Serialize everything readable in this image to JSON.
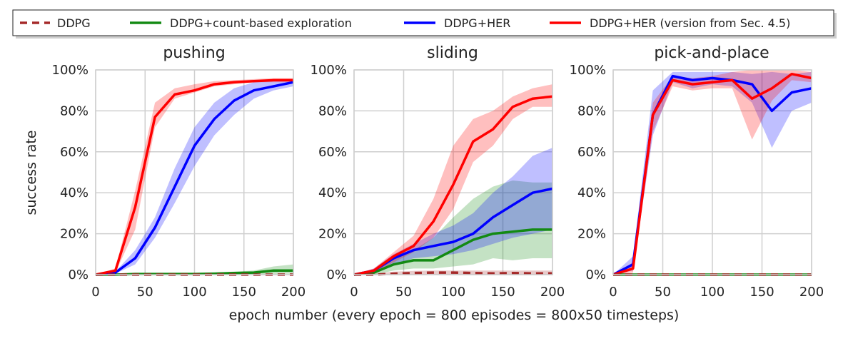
{
  "figure": {
    "ylabel": "success rate",
    "xlabel": "epoch number (every epoch = 800 episodes = 800x50 timesteps)"
  },
  "legend": {
    "placement": "top",
    "items": [
      {
        "label": "DDPG",
        "color": "#a52a2a",
        "style": "dashed"
      },
      {
        "label": "DDPG+count-based exploration",
        "color": "#138a13",
        "style": "solid"
      },
      {
        "label": "DDPG+HER",
        "color": "#0000ff",
        "style": "solid"
      },
      {
        "label": "DDPG+HER (version from Sec. 4.5)",
        "color": "#ff0000",
        "style": "solid"
      }
    ]
  },
  "chart_data": [
    {
      "type": "line",
      "title": "pushing",
      "xlim": [
        0,
        200
      ],
      "ylim": [
        0,
        100
      ],
      "xticks": [
        "0",
        "50",
        "100",
        "150",
        "200"
      ],
      "yticks": [
        "0%",
        "20%",
        "40%",
        "60%",
        "80%",
        "100%"
      ],
      "grid": true,
      "x": [
        0,
        20,
        40,
        60,
        80,
        100,
        120,
        140,
        160,
        180,
        200
      ],
      "series": [
        {
          "name": "DDPG",
          "color": "#a52a2a",
          "values": [
            0,
            0,
            0,
            0,
            0,
            0,
            0,
            0,
            0,
            0,
            0
          ],
          "lower": [
            0,
            0,
            0,
            0,
            0,
            0,
            0,
            0,
            0,
            0,
            0
          ],
          "upper": [
            0,
            0,
            0,
            0,
            0,
            0,
            0,
            0,
            0,
            0,
            0
          ]
        },
        {
          "name": "DDPG+count-based exploration",
          "color": "#138a13",
          "values": [
            0,
            0,
            0.3,
            0.3,
            0.3,
            0.3,
            0.5,
            0.8,
            1,
            2,
            2
          ],
          "lower": [
            0,
            0,
            0,
            0,
            0,
            0,
            0,
            0,
            0,
            0.3,
            0.5
          ],
          "upper": [
            0,
            0,
            0.6,
            0.6,
            0.6,
            0.6,
            1,
            1.5,
            2,
            4,
            5
          ]
        },
        {
          "name": "DDPG+HER",
          "color": "#0000ff",
          "values": [
            0,
            1,
            8,
            23,
            43,
            63,
            76,
            85,
            90,
            92,
            94
          ],
          "lower": [
            0,
            0.5,
            5,
            18,
            35,
            53,
            68,
            78,
            86,
            90,
            92
          ],
          "upper": [
            0,
            1.5,
            12,
            28,
            52,
            72,
            84,
            91,
            94,
            95,
            95
          ]
        },
        {
          "name": "DDPG+HER (version from Sec. 4.5)",
          "color": "#ff0000",
          "values": [
            0,
            2,
            33,
            77,
            88,
            90,
            93,
            94,
            94.5,
            95,
            95
          ],
          "lower": [
            0,
            1,
            22,
            72,
            86,
            89,
            92,
            93,
            94,
            94,
            94
          ],
          "upper": [
            0,
            3,
            41,
            84,
            91,
            93,
            94.5,
            95,
            95.5,
            96,
            96
          ]
        }
      ]
    },
    {
      "type": "line",
      "title": "sliding",
      "xlim": [
        0,
        200
      ],
      "ylim": [
        0,
        100
      ],
      "xticks": [
        "0",
        "50",
        "100",
        "150",
        "200"
      ],
      "yticks": [
        "0%",
        "20%",
        "40%",
        "60%",
        "80%",
        "100%"
      ],
      "grid": true,
      "x": [
        0,
        20,
        40,
        60,
        80,
        100,
        120,
        140,
        160,
        180,
        200
      ],
      "series": [
        {
          "name": "DDPG",
          "color": "#a52a2a",
          "values": [
            0,
            0,
            0.5,
            0.8,
            1,
            1,
            0.8,
            0.6,
            0.8,
            0.6,
            0.6
          ],
          "lower": [
            0,
            0,
            0,
            0,
            0,
            0,
            0,
            0,
            0,
            0,
            0
          ],
          "upper": [
            0,
            0.5,
            1.5,
            1.8,
            2,
            2,
            2,
            2,
            2,
            2,
            2
          ]
        },
        {
          "name": "DDPG+count-based exploration",
          "color": "#138a13",
          "values": [
            0,
            1,
            5,
            7,
            7,
            12,
            17,
            20,
            21,
            22,
            22
          ],
          "lower": [
            0,
            0,
            2,
            3,
            3,
            4,
            5,
            8,
            7,
            8,
            8
          ],
          "upper": [
            0,
            2,
            8,
            12,
            18,
            28,
            37,
            43,
            46,
            45,
            45
          ]
        },
        {
          "name": "DDPG+HER",
          "color": "#0000ff",
          "values": [
            0,
            2,
            8,
            12,
            14,
            16,
            20,
            28,
            34,
            40,
            42
          ],
          "lower": [
            0,
            1,
            5,
            8,
            9,
            10,
            12,
            15,
            18,
            20,
            22
          ],
          "upper": [
            0,
            3,
            10,
            15,
            20,
            24,
            30,
            40,
            48,
            58,
            62
          ]
        },
        {
          "name": "DDPG+HER (version from Sec. 4.5)",
          "color": "#ff0000",
          "values": [
            0,
            2,
            9,
            14,
            26,
            44,
            65,
            71,
            82,
            86,
            87
          ],
          "lower": [
            0,
            1,
            6,
            11,
            18,
            32,
            55,
            63,
            76,
            82,
            82
          ],
          "upper": [
            0,
            3,
            11,
            19,
            37,
            63,
            76,
            80,
            87,
            91,
            93
          ]
        }
      ]
    },
    {
      "type": "line",
      "title": "pick-and-place",
      "xlim": [
        0,
        200
      ],
      "ylim": [
        0,
        100
      ],
      "xticks": [
        "0",
        "50",
        "100",
        "150",
        "200"
      ],
      "yticks": [
        "0%",
        "20%",
        "40%",
        "60%",
        "80%",
        "100%"
      ],
      "grid": true,
      "x": [
        0,
        20,
        40,
        60,
        80,
        100,
        120,
        140,
        160,
        180,
        200
      ],
      "series": [
        {
          "name": "DDPG",
          "color": "#a52a2a",
          "values": [
            0,
            0,
            0,
            0,
            0,
            0,
            0,
            0,
            0,
            0,
            0
          ],
          "lower": [
            0,
            0,
            0,
            0,
            0,
            0,
            0,
            0,
            0,
            0,
            0
          ],
          "upper": [
            0,
            0,
            0,
            0,
            0,
            0,
            0,
            0,
            0,
            0,
            0
          ]
        },
        {
          "name": "DDPG+count-based exploration",
          "color": "#138a13",
          "values": [
            0,
            0,
            0,
            0,
            0,
            0,
            0,
            0,
            0,
            0,
            0
          ],
          "lower": [
            0,
            0,
            0,
            0,
            0,
            0,
            0,
            0,
            0,
            0,
            0
          ],
          "upper": [
            0,
            0,
            0,
            0,
            0,
            0,
            0,
            0,
            0,
            0,
            0
          ]
        },
        {
          "name": "DDPG+HER",
          "color": "#0000ff",
          "values": [
            0,
            5,
            78,
            97,
            95,
            96,
            95,
            93,
            80,
            89,
            91
          ],
          "lower": [
            0,
            2,
            68,
            94,
            91,
            93,
            92,
            84,
            62,
            80,
            84
          ],
          "upper": [
            0,
            9,
            90,
            99,
            99,
            99,
            99,
            98,
            99,
            98,
            99
          ]
        },
        {
          "name": "DDPG+HER (version from Sec. 4.5)",
          "color": "#ff0000",
          "values": [
            0,
            3,
            78,
            95,
            93,
            94,
            95,
            86,
            91,
            98,
            96
          ],
          "lower": [
            0,
            1,
            70,
            92,
            90,
            91,
            91,
            66,
            85,
            95,
            94
          ],
          "upper": [
            0,
            6,
            84,
            97,
            96,
            97,
            99,
            100,
            100,
            100,
            99
          ]
        }
      ]
    }
  ]
}
